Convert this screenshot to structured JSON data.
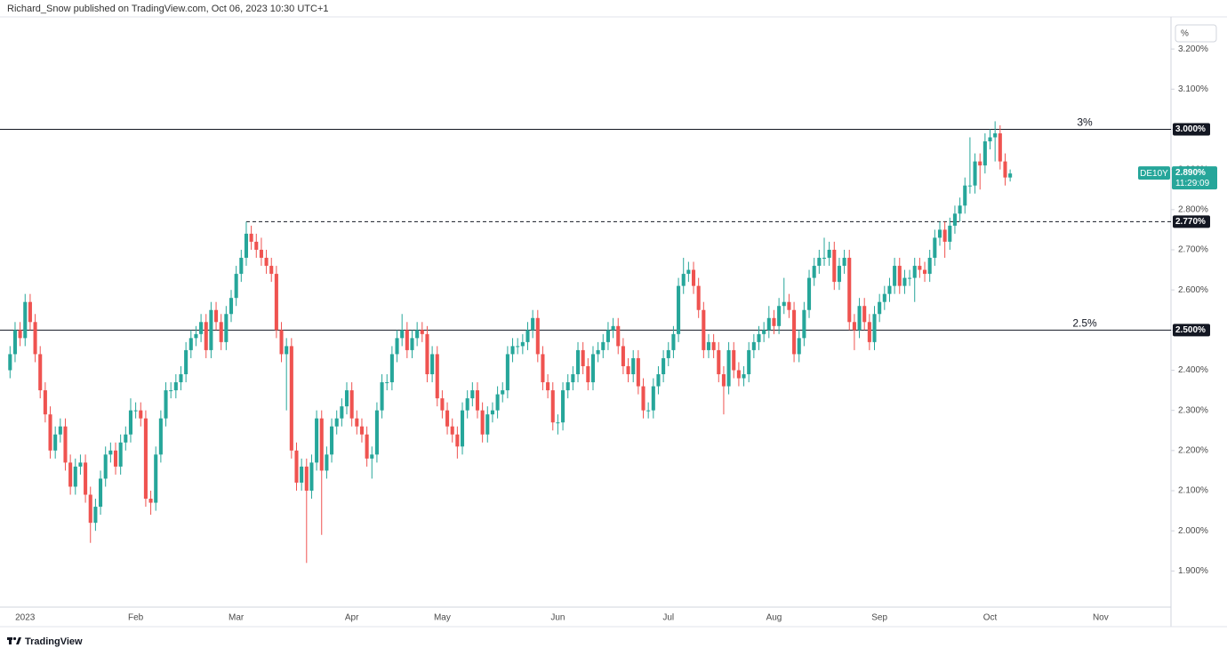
{
  "header": "Richard_Snow published on TradingView.com, Oct 06, 2023 10:30 UTC+1",
  "footer": "TradingView",
  "chart_data": {
    "type": "candlestick",
    "unit_button": "%",
    "up_color": "#26a69a",
    "down_color": "#ef5350",
    "ylim": [
      1.81,
      3.28
    ],
    "yticks": [
      {
        "value": 1.9,
        "label": "1.900%"
      },
      {
        "value": 2.0,
        "label": "2.000%"
      },
      {
        "value": 2.1,
        "label": "2.100%"
      },
      {
        "value": 2.2,
        "label": "2.200%"
      },
      {
        "value": 2.3,
        "label": "2.300%"
      },
      {
        "value": 2.4,
        "label": "2.400%"
      },
      {
        "value": 2.5,
        "label": "2.500%"
      },
      {
        "value": 2.6,
        "label": "2.600%"
      },
      {
        "value": 2.7,
        "label": "2.700%"
      },
      {
        "value": 2.8,
        "label": "2.800%"
      },
      {
        "value": 2.9,
        "label": "2.900%"
      },
      {
        "value": 3.0,
        "label": "3.000%"
      },
      {
        "value": 3.1,
        "label": "3.100%"
      },
      {
        "value": 3.2,
        "label": "3.200%"
      }
    ],
    "xlim": [
      -2,
      231
    ],
    "xticks": [
      {
        "value": 3,
        "label": "2023"
      },
      {
        "value": 25,
        "label": "Feb"
      },
      {
        "value": 45,
        "label": "Mar"
      },
      {
        "value": 68,
        "label": "Apr"
      },
      {
        "value": 86,
        "label": "May"
      },
      {
        "value": 109,
        "label": "Jun"
      },
      {
        "value": 131,
        "label": "Jul"
      },
      {
        "value": 152,
        "label": "Aug"
      },
      {
        "value": 173,
        "label": "Sep"
      },
      {
        "value": 195,
        "label": "Oct"
      },
      {
        "value": 217,
        "label": "Nov"
      }
    ],
    "hlines": [
      {
        "value": 3.0,
        "label": "3%",
        "axis_label": "3.000%",
        "style": "solid"
      },
      {
        "value": 2.77,
        "x_start": 47,
        "axis_label": "2.770%",
        "style": "dashed"
      },
      {
        "value": 2.5,
        "label": "2.5%",
        "axis_label": "2.500%",
        "style": "solid"
      }
    ],
    "last": {
      "name": "DE10Y",
      "value": 2.89,
      "label": "2.890%",
      "countdown": "11:29:09"
    },
    "open": [
      2.4,
      2.44,
      2.5,
      2.48,
      2.57,
      2.52,
      2.44,
      2.35,
      2.29,
      2.2,
      2.24,
      2.26,
      2.17,
      2.11,
      2.16,
      2.17,
      2.09,
      2.02,
      2.06,
      2.13,
      2.19,
      2.2,
      2.16,
      2.22,
      2.24,
      2.3,
      2.3,
      2.28,
      2.08,
      2.07,
      2.19,
      2.28,
      2.35,
      2.35,
      2.37,
      2.39,
      2.45,
      2.48,
      2.49,
      2.52,
      2.45,
      2.55,
      2.52,
      2.47,
      2.54,
      2.58,
      2.64,
      2.68,
      2.74,
      2.72,
      2.7,
      2.68,
      2.66,
      2.64,
      2.5,
      2.44,
      2.46,
      2.2,
      2.12,
      2.16,
      2.1,
      2.17,
      2.28,
      2.15,
      2.19,
      2.26,
      2.28,
      2.31,
      2.35,
      2.28,
      2.26,
      2.24,
      2.18,
      2.19,
      2.3,
      2.37,
      2.37,
      2.44,
      2.48,
      2.5,
      2.45,
      2.48,
      2.5,
      2.49,
      2.39,
      2.44,
      2.33,
      2.3,
      2.26,
      2.24,
      2.21,
      2.3,
      2.33,
      2.35,
      2.3,
      2.24,
      2.29,
      2.3,
      2.34,
      2.35,
      2.44,
      2.46,
      2.46,
      2.47,
      2.5,
      2.53,
      2.44,
      2.37,
      2.35,
      2.27,
      2.27,
      2.35,
      2.37,
      2.39,
      2.45,
      2.41,
      2.37,
      2.44,
      2.45,
      2.47,
      2.5,
      2.51,
      2.46,
      2.41,
      2.39,
      2.43,
      2.36,
      2.3,
      2.3,
      2.36,
      2.39,
      2.43,
      2.45,
      2.49,
      2.61,
      2.64,
      2.65,
      2.61,
      2.55,
      2.45,
      2.47,
      2.45,
      2.39,
      2.36,
      2.45,
      2.4,
      2.38,
      2.39,
      2.45,
      2.47,
      2.49,
      2.5,
      2.53,
      2.51,
      2.56,
      2.57,
      2.55,
      2.44,
      2.48,
      2.55,
      2.63,
      2.66,
      2.68,
      2.68,
      2.7,
      2.62,
      2.66,
      2.68,
      2.52,
      2.5,
      2.56,
      2.52,
      2.47,
      2.54,
      2.57,
      2.59,
      2.61,
      2.66,
      2.61,
      2.63,
      2.63,
      2.66,
      2.65,
      2.64,
      2.68,
      2.73,
      2.75,
      2.72,
      2.76,
      2.79,
      2.81,
      2.86,
      2.86,
      2.92,
      2.91,
      2.97,
      2.98,
      2.99,
      2.92,
      2.88
    ],
    "high": [
      2.46,
      2.52,
      2.52,
      2.59,
      2.59,
      2.54,
      2.46,
      2.37,
      2.31,
      2.26,
      2.28,
      2.28,
      2.19,
      2.18,
      2.19,
      2.19,
      2.11,
      2.08,
      2.15,
      2.21,
      2.22,
      2.22,
      2.24,
      2.26,
      2.33,
      2.32,
      2.32,
      2.3,
      2.1,
      2.21,
      2.3,
      2.37,
      2.37,
      2.39,
      2.41,
      2.47,
      2.5,
      2.51,
      2.54,
      2.54,
      2.57,
      2.57,
      2.54,
      2.56,
      2.6,
      2.66,
      2.7,
      2.77,
      2.76,
      2.74,
      2.73,
      2.7,
      2.68,
      2.66,
      2.52,
      2.48,
      2.48,
      2.22,
      2.18,
      2.18,
      2.19,
      2.3,
      2.3,
      2.21,
      2.28,
      2.3,
      2.33,
      2.37,
      2.37,
      2.3,
      2.28,
      2.26,
      2.21,
      2.32,
      2.39,
      2.39,
      2.46,
      2.5,
      2.54,
      2.52,
      2.5,
      2.52,
      2.52,
      2.51,
      2.46,
      2.46,
      2.35,
      2.32,
      2.28,
      2.26,
      2.32,
      2.35,
      2.37,
      2.37,
      2.32,
      2.31,
      2.32,
      2.36,
      2.37,
      2.46,
      2.48,
      2.48,
      2.49,
      2.52,
      2.55,
      2.55,
      2.46,
      2.39,
      2.37,
      2.29,
      2.37,
      2.39,
      2.41,
      2.47,
      2.47,
      2.43,
      2.46,
      2.47,
      2.49,
      2.52,
      2.53,
      2.53,
      2.48,
      2.43,
      2.45,
      2.45,
      2.38,
      2.32,
      2.38,
      2.41,
      2.45,
      2.47,
      2.51,
      2.63,
      2.68,
      2.67,
      2.67,
      2.63,
      2.57,
      2.49,
      2.49,
      2.47,
      2.41,
      2.47,
      2.47,
      2.42,
      2.41,
      2.47,
      2.49,
      2.51,
      2.52,
      2.56,
      2.55,
      2.58,
      2.63,
      2.59,
      2.57,
      2.5,
      2.57,
      2.65,
      2.68,
      2.7,
      2.73,
      2.72,
      2.72,
      2.68,
      2.7,
      2.7,
      2.54,
      2.58,
      2.58,
      2.54,
      2.56,
      2.59,
      2.61,
      2.63,
      2.68,
      2.68,
      2.65,
      2.65,
      2.68,
      2.68,
      2.67,
      2.7,
      2.75,
      2.77,
      2.77,
      2.78,
      2.81,
      2.83,
      2.88,
      2.98,
      2.94,
      2.94,
      2.99,
      3.0,
      3.02,
      3.01,
      2.94,
      2.9
    ],
    "low": [
      2.38,
      2.42,
      2.46,
      2.46,
      2.5,
      2.42,
      2.33,
      2.27,
      2.18,
      2.18,
      2.22,
      2.15,
      2.09,
      2.09,
      2.14,
      2.07,
      1.97,
      2.0,
      2.04,
      2.11,
      2.17,
      2.14,
      2.14,
      2.2,
      2.22,
      2.28,
      2.26,
      2.06,
      2.04,
      2.05,
      2.17,
      2.26,
      2.33,
      2.33,
      2.35,
      2.37,
      2.43,
      2.46,
      2.47,
      2.43,
      2.43,
      2.5,
      2.45,
      2.45,
      2.52,
      2.56,
      2.62,
      2.66,
      2.7,
      2.68,
      2.66,
      2.64,
      2.62,
      2.48,
      2.42,
      2.3,
      2.18,
      2.1,
      2.1,
      1.92,
      2.08,
      2.15,
      1.99,
      2.13,
      2.17,
      2.24,
      2.26,
      2.29,
      2.26,
      2.24,
      2.22,
      2.16,
      2.13,
      2.17,
      2.28,
      2.35,
      2.35,
      2.42,
      2.46,
      2.43,
      2.43,
      2.46,
      2.47,
      2.37,
      2.37,
      2.31,
      2.28,
      2.24,
      2.22,
      2.18,
      2.19,
      2.28,
      2.31,
      2.28,
      2.22,
      2.22,
      2.27,
      2.28,
      2.32,
      2.33,
      2.42,
      2.44,
      2.44,
      2.45,
      2.48,
      2.42,
      2.35,
      2.33,
      2.25,
      2.24,
      2.25,
      2.33,
      2.35,
      2.37,
      2.39,
      2.35,
      2.35,
      2.42,
      2.43,
      2.45,
      2.48,
      2.44,
      2.39,
      2.37,
      2.37,
      2.34,
      2.28,
      2.28,
      2.28,
      2.34,
      2.37,
      2.41,
      2.43,
      2.47,
      2.59,
      2.62,
      2.59,
      2.53,
      2.43,
      2.43,
      2.43,
      2.37,
      2.29,
      2.34,
      2.38,
      2.36,
      2.36,
      2.37,
      2.43,
      2.45,
      2.47,
      2.48,
      2.49,
      2.49,
      2.54,
      2.53,
      2.42,
      2.42,
      2.46,
      2.53,
      2.61,
      2.64,
      2.66,
      2.66,
      2.6,
      2.6,
      2.64,
      2.5,
      2.45,
      2.48,
      2.5,
      2.45,
      2.45,
      2.52,
      2.55,
      2.57,
      2.59,
      2.59,
      2.59,
      2.61,
      2.57,
      2.63,
      2.62,
      2.62,
      2.66,
      2.71,
      2.68,
      2.7,
      2.74,
      2.77,
      2.79,
      2.84,
      2.84,
      2.85,
      2.89,
      2.95,
      2.92,
      2.9,
      2.86,
      2.87
    ],
    "close": [
      2.44,
      2.5,
      2.48,
      2.57,
      2.52,
      2.44,
      2.35,
      2.29,
      2.2,
      2.24,
      2.26,
      2.17,
      2.11,
      2.16,
      2.17,
      2.09,
      2.02,
      2.06,
      2.13,
      2.19,
      2.2,
      2.16,
      2.22,
      2.24,
      2.3,
      2.3,
      2.28,
      2.08,
      2.07,
      2.19,
      2.28,
      2.35,
      2.35,
      2.37,
      2.39,
      2.45,
      2.48,
      2.49,
      2.52,
      2.45,
      2.55,
      2.52,
      2.47,
      2.54,
      2.58,
      2.64,
      2.68,
      2.74,
      2.72,
      2.7,
      2.68,
      2.66,
      2.64,
      2.5,
      2.44,
      2.46,
      2.2,
      2.12,
      2.16,
      2.1,
      2.17,
      2.28,
      2.15,
      2.19,
      2.26,
      2.28,
      2.31,
      2.35,
      2.28,
      2.26,
      2.24,
      2.18,
      2.19,
      2.3,
      2.37,
      2.37,
      2.44,
      2.48,
      2.5,
      2.45,
      2.48,
      2.5,
      2.49,
      2.39,
      2.44,
      2.33,
      2.3,
      2.26,
      2.24,
      2.21,
      2.3,
      2.33,
      2.35,
      2.3,
      2.24,
      2.29,
      2.3,
      2.34,
      2.35,
      2.44,
      2.46,
      2.46,
      2.47,
      2.5,
      2.53,
      2.44,
      2.37,
      2.35,
      2.27,
      2.27,
      2.35,
      2.37,
      2.39,
      2.45,
      2.41,
      2.37,
      2.44,
      2.45,
      2.47,
      2.5,
      2.51,
      2.46,
      2.41,
      2.39,
      2.43,
      2.36,
      2.3,
      2.3,
      2.36,
      2.39,
      2.43,
      2.45,
      2.49,
      2.61,
      2.64,
      2.65,
      2.61,
      2.55,
      2.45,
      2.47,
      2.45,
      2.39,
      2.36,
      2.45,
      2.4,
      2.38,
      2.39,
      2.45,
      2.47,
      2.49,
      2.5,
      2.53,
      2.51,
      2.56,
      2.57,
      2.55,
      2.44,
      2.48,
      2.55,
      2.63,
      2.66,
      2.68,
      2.68,
      2.7,
      2.62,
      2.66,
      2.68,
      2.52,
      2.5,
      2.56,
      2.52,
      2.47,
      2.54,
      2.57,
      2.59,
      2.61,
      2.66,
      2.61,
      2.63,
      2.63,
      2.66,
      2.65,
      2.64,
      2.68,
      2.73,
      2.75,
      2.72,
      2.76,
      2.79,
      2.81,
      2.86,
      2.86,
      2.92,
      2.91,
      2.97,
      2.98,
      2.99,
      2.92,
      2.88,
      2.89
    ]
  }
}
